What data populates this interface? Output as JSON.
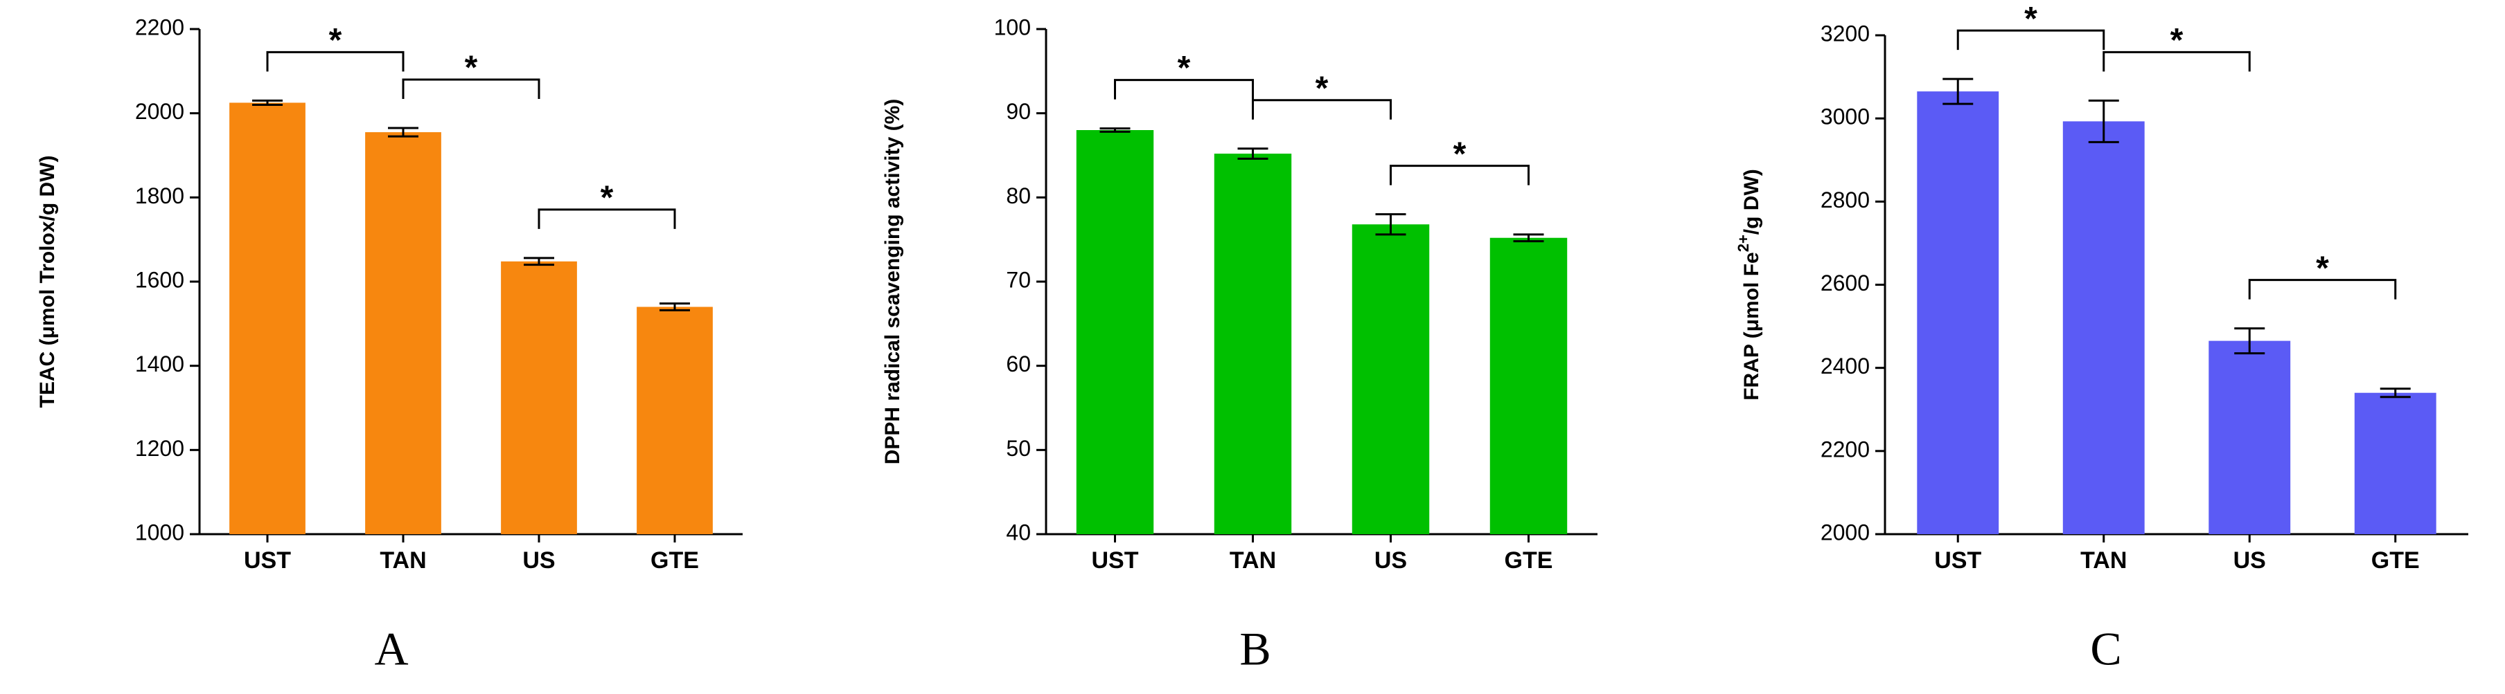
{
  "chart_data": [
    {
      "type": "bar",
      "panel": "A",
      "y_label": "TEAC (μmol Trolox/g DW)",
      "categories": [
        "UST",
        "TAN",
        "US",
        "GTE"
      ],
      "values": [
        2025,
        1955,
        1648,
        1540
      ],
      "errors": [
        5,
        10,
        8,
        8
      ],
      "color": "#f7870f",
      "ylim": [
        1000,
        2200
      ],
      "yticks": [
        1000,
        1200,
        1400,
        1600,
        1800,
        2000,
        2200
      ],
      "annotations": [
        "*",
        "*",
        "*"
      ]
    },
    {
      "type": "bar",
      "panel": "B",
      "y_label": "DPPH radical scavenging activity (%)",
      "categories": [
        "UST",
        "TAN",
        "US",
        "GTE"
      ],
      "values": [
        88,
        85.2,
        76.8,
        75.2
      ],
      "errors": [
        0.2,
        0.6,
        1.2,
        0.4
      ],
      "color": "#00c000",
      "ylim": [
        40,
        100
      ],
      "yticks": [
        40,
        50,
        60,
        70,
        80,
        90,
        100
      ],
      "annotations": [
        "*",
        "*",
        "*"
      ]
    },
    {
      "type": "bar",
      "panel": "C",
      "y_label": "FRAP (μmol Fe",
      "y_label_sup": "2+",
      "y_label_tail": "/g DW)",
      "categories": [
        "UST",
        "TAN",
        "US",
        "GTE"
      ],
      "values": [
        3065,
        2993,
        2465,
        2340
      ],
      "errors": [
        30,
        50,
        30,
        10
      ],
      "color": "#5b5bf5",
      "ylim": [
        2000,
        3200
      ],
      "yticks": [
        2000,
        2200,
        2400,
        2600,
        2800,
        3000,
        3200
      ],
      "annotations": [
        "*",
        "*",
        "*"
      ]
    }
  ]
}
